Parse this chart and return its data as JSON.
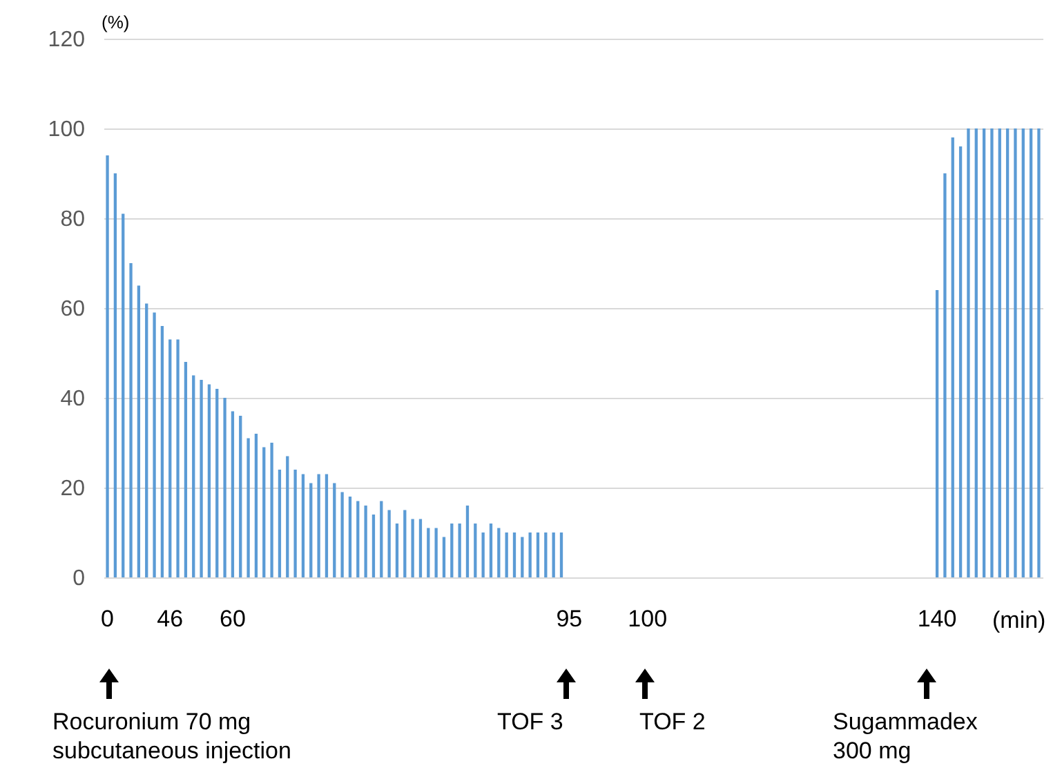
{
  "chart_data": {
    "type": "bar",
    "xlabel": "(min)",
    "ylabel": "(%)",
    "categories": [
      "0",
      null,
      null,
      null,
      null,
      null,
      null,
      null,
      "46",
      null,
      null,
      null,
      null,
      null,
      null,
      null,
      "60",
      null,
      null,
      null,
      null,
      null,
      null,
      null,
      null,
      null,
      null,
      null,
      null,
      null,
      null,
      null,
      null,
      null,
      null,
      null,
      null,
      null,
      null,
      null,
      null,
      null,
      null,
      null,
      null,
      null,
      null,
      null,
      null,
      null,
      null,
      null,
      null,
      null,
      null,
      null,
      null,
      null,
      null,
      "95",
      null,
      null,
      null,
      null,
      null,
      null,
      null,
      null,
      null,
      "100",
      null,
      null,
      null,
      null,
      null,
      null,
      null,
      null,
      null,
      null,
      null,
      null,
      null,
      null,
      null,
      null,
      null,
      null,
      null,
      null,
      null,
      null,
      null,
      null,
      null,
      null,
      null,
      null,
      null,
      null,
      null,
      null,
      null,
      null,
      null,
      null,
      "140",
      null,
      null,
      null,
      null,
      null,
      null,
      null,
      null,
      null,
      null,
      null,
      null,
      null
    ],
    "values": [
      94,
      90,
      81,
      70,
      65,
      61,
      59,
      56,
      53,
      53,
      48,
      45,
      44,
      43,
      42,
      40,
      37,
      36,
      31,
      32,
      29,
      30,
      24,
      27,
      24,
      23,
      21,
      23,
      23,
      21,
      19,
      18,
      17,
      16,
      14,
      17,
      15,
      12,
      15,
      13,
      13,
      11,
      11,
      9,
      12,
      12,
      16,
      12,
      10,
      12,
      11,
      10,
      10,
      9,
      10,
      10,
      10,
      10,
      10,
      null,
      null,
      null,
      null,
      null,
      null,
      null,
      null,
      null,
      null,
      null,
      null,
      null,
      null,
      null,
      null,
      null,
      null,
      null,
      null,
      null,
      null,
      null,
      null,
      null,
      null,
      null,
      null,
      null,
      null,
      null,
      null,
      null,
      null,
      null,
      null,
      null,
      null,
      null,
      null,
      null,
      null,
      null,
      null,
      null,
      null,
      null,
      64,
      90,
      98,
      96,
      100,
      100,
      100,
      100,
      100,
      100,
      100,
      100,
      100,
      100
    ],
    "color": "#5b9bd5",
    "ylim": [
      0,
      120
    ],
    "yticks": [
      0,
      20,
      40,
      60,
      80,
      100,
      120
    ],
    "grid": "y",
    "annotations": [
      "Rocuronium 70 mg\nsubcutaneous injection",
      "TOF 3",
      "TOF 2",
      "Sugammadex\n300 mg"
    ]
  }
}
